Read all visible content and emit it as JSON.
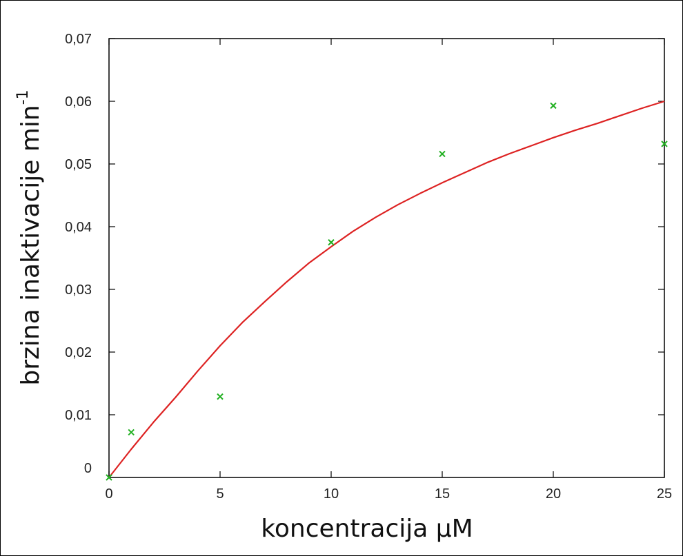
{
  "chart_data": {
    "type": "scatter",
    "xlabel": "koncentracija µM",
    "ylabel": "brzina inaktivacije min",
    "ylabel_superscript": "-1",
    "xlim": [
      0,
      25
    ],
    "ylim": [
      0,
      0.07
    ],
    "x_ticks": [
      0,
      5,
      10,
      15,
      20,
      25
    ],
    "x_tick_labels": [
      "0",
      "5",
      "10",
      "15",
      "20",
      "25"
    ],
    "y_ticks": [
      0,
      0.01,
      0.02,
      0.03,
      0.04,
      0.05,
      0.06,
      0.07
    ],
    "y_tick_labels": [
      "0",
      "0,01",
      "0,02",
      "0,03",
      "0,04",
      "0,05",
      "0,06",
      "0,07"
    ],
    "grid": false,
    "series": [
      {
        "type": "scatter",
        "marker": "x",
        "color": "#22b022",
        "x": [
          0,
          1,
          5,
          10,
          15,
          20,
          25
        ],
        "y": [
          0.0,
          0.0072,
          0.0129,
          0.0375,
          0.0516,
          0.0593,
          0.0532
        ]
      },
      {
        "type": "line",
        "color": "#dd2222",
        "x": [
          0,
          1,
          2,
          3,
          4,
          5,
          6,
          7,
          8,
          9,
          10,
          11,
          12,
          13,
          14,
          15,
          16,
          17,
          18,
          19,
          20,
          21,
          22,
          23,
          24,
          25
        ],
        "y": [
          0.0,
          0.0045,
          0.0088,
          0.0128,
          0.017,
          0.021,
          0.0247,
          0.028,
          0.0312,
          0.0342,
          0.0368,
          0.0393,
          0.0415,
          0.0435,
          0.0453,
          0.047,
          0.0486,
          0.0502,
          0.0516,
          0.0529,
          0.0542,
          0.0554,
          0.0565,
          0.0577,
          0.0589,
          0.06
        ]
      }
    ]
  }
}
